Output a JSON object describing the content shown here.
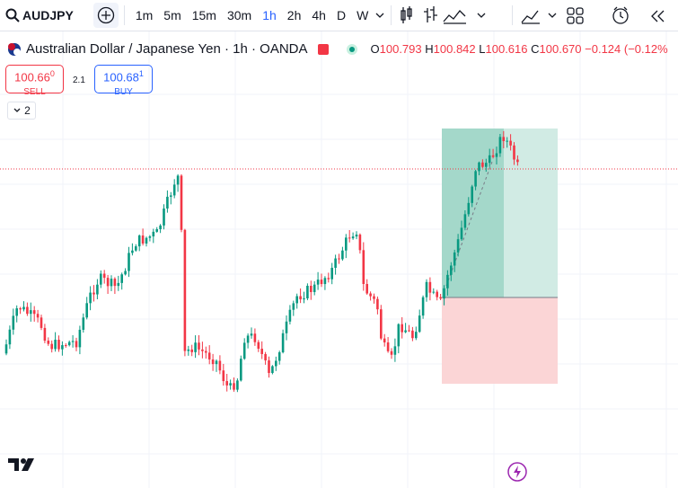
{
  "toolbar": {
    "symbol": "AUDJPY",
    "timeframes": [
      "1m",
      "5m",
      "15m",
      "30m",
      "1h",
      "2h",
      "4h",
      "D",
      "W"
    ]
  },
  "legend": {
    "title": "Australian Dollar / Japanese Yen · 1h · OANDA",
    "open_label": "O",
    "open": "100.793",
    "high_label": "H",
    "high": "100.842",
    "low_label": "L",
    "low": "100.616",
    "close_label": "C",
    "close": "100.670",
    "change": "−0.124",
    "change_pct": "(−0.12%"
  },
  "trade": {
    "sell_price": "100.66",
    "sell_price_small": "0",
    "sell_label": "SELL",
    "spread": "2.1",
    "buy_price": "100.68",
    "buy_price_small": "1",
    "buy_label": "BUY"
  },
  "indicators_badge": "2"
}
